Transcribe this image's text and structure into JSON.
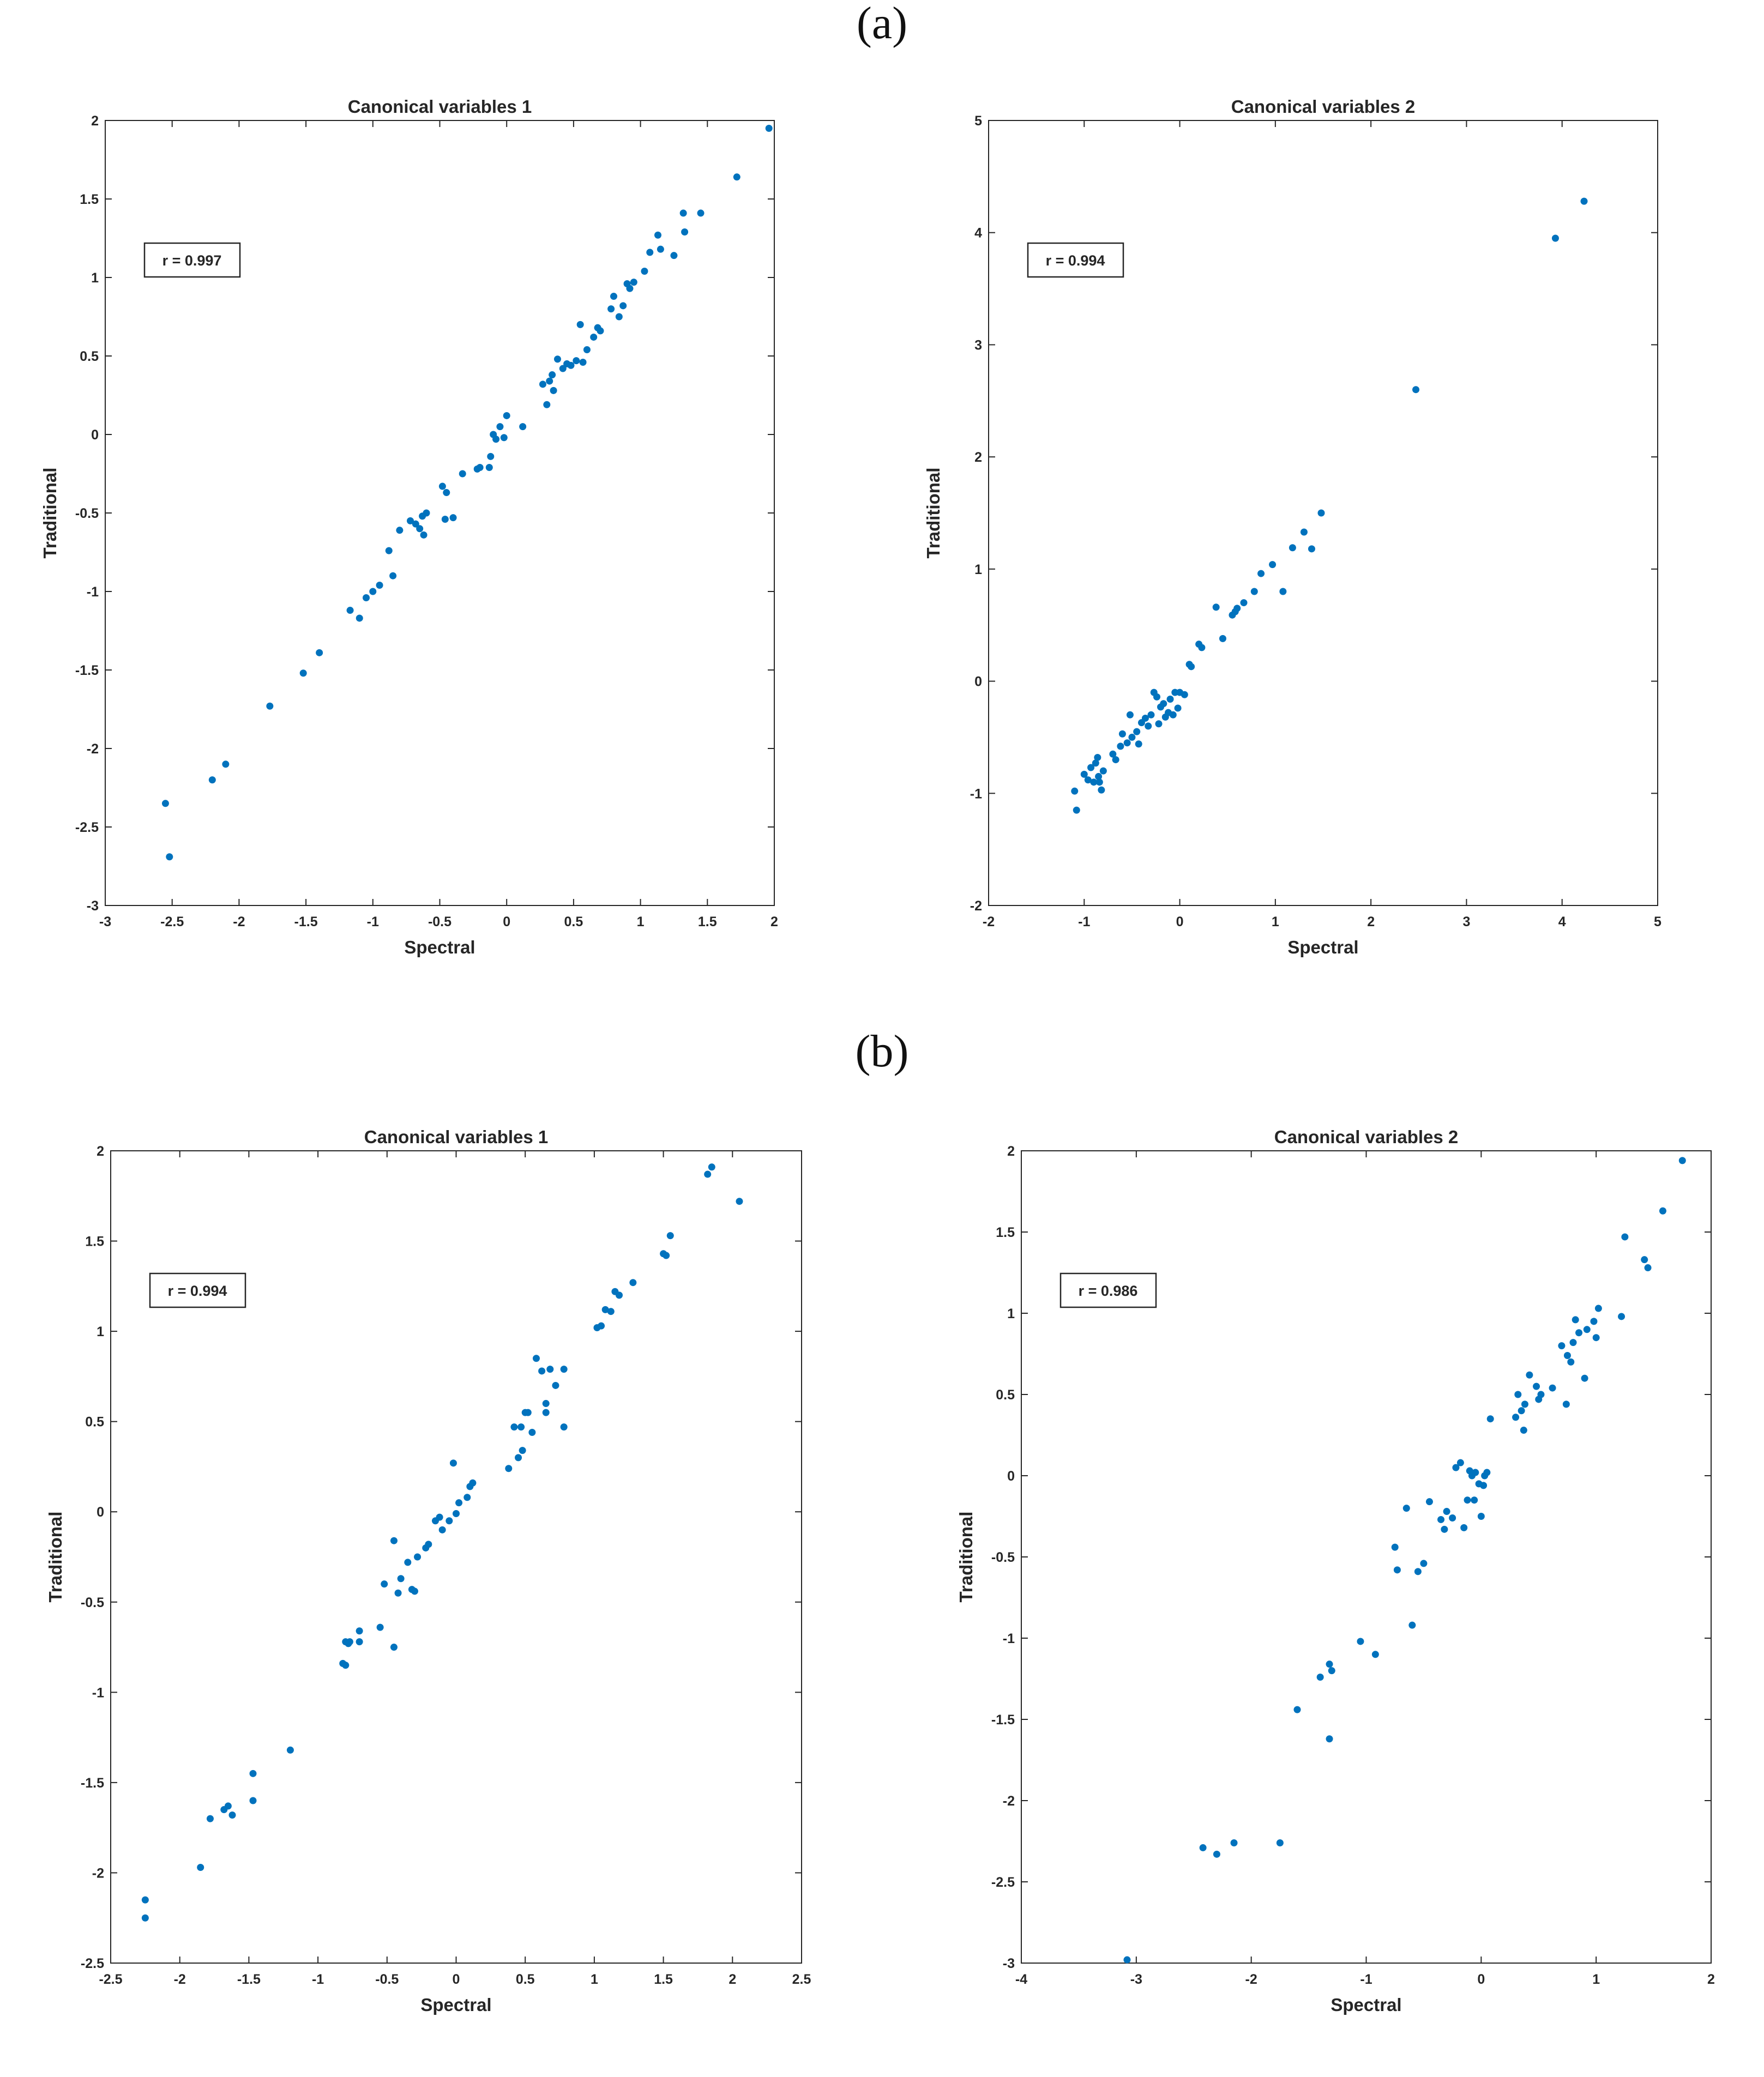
{
  "labels": {
    "a": "(a)",
    "b": "(b)"
  },
  "chart_data": [
    {
      "id": "a1",
      "type": "scatter",
      "title": "Canonical variables 1",
      "xlabel": "Spectral",
      "ylabel": "Traditional",
      "xlim": [
        -3,
        2
      ],
      "ylim": [
        -3,
        2
      ],
      "xticks": [
        -3,
        -2.5,
        -2,
        -1.5,
        -1,
        -0.5,
        0,
        0.5,
        1,
        1.5,
        2
      ],
      "yticks": [
        -3,
        -2.5,
        -2,
        -1.5,
        -1,
        -0.5,
        0,
        0.5,
        1,
        1.5,
        2
      ],
      "annotation": "r = 0.997",
      "marker_color": "#0072BD",
      "points": [
        [
          -2.55,
          -2.35
        ],
        [
          -2.52,
          -2.69
        ],
        [
          -2.2,
          -2.2
        ],
        [
          -2.1,
          -2.1
        ],
        [
          -1.77,
          -1.73
        ],
        [
          -1.52,
          -1.52
        ],
        [
          -1.4,
          -1.39
        ],
        [
          -1.17,
          -1.12
        ],
        [
          -1.1,
          -1.17
        ],
        [
          -1.05,
          -1.04
        ],
        [
          -1.0,
          -1.0
        ],
        [
          -0.95,
          -0.96
        ],
        [
          -0.88,
          -0.74
        ],
        [
          -0.85,
          -0.9
        ],
        [
          -0.8,
          -0.61
        ],
        [
          -0.72,
          -0.55
        ],
        [
          -0.68,
          -0.57
        ],
        [
          -0.65,
          -0.6
        ],
        [
          -0.63,
          -0.52
        ],
        [
          -0.62,
          -0.64
        ],
        [
          -0.6,
          -0.5
        ],
        [
          -0.48,
          -0.33
        ],
        [
          -0.46,
          -0.54
        ],
        [
          -0.45,
          -0.37
        ],
        [
          -0.4,
          -0.53
        ],
        [
          -0.33,
          -0.25
        ],
        [
          -0.22,
          -0.22
        ],
        [
          -0.2,
          -0.21
        ],
        [
          -0.13,
          -0.21
        ],
        [
          -0.12,
          -0.14
        ],
        [
          -0.1,
          0.0
        ],
        [
          -0.08,
          -0.03
        ],
        [
          -0.05,
          0.05
        ],
        [
          -0.02,
          -0.02
        ],
        [
          0.0,
          0.12
        ],
        [
          0.12,
          0.05
        ],
        [
          0.27,
          0.32
        ],
        [
          0.3,
          0.19
        ],
        [
          0.32,
          0.34
        ],
        [
          0.34,
          0.38
        ],
        [
          0.35,
          0.28
        ],
        [
          0.38,
          0.48
        ],
        [
          0.42,
          0.42
        ],
        [
          0.45,
          0.45
        ],
        [
          0.48,
          0.44
        ],
        [
          0.52,
          0.47
        ],
        [
          0.55,
          0.7
        ],
        [
          0.57,
          0.46
        ],
        [
          0.6,
          0.54
        ],
        [
          0.65,
          0.62
        ],
        [
          0.68,
          0.68
        ],
        [
          0.7,
          0.66
        ],
        [
          0.78,
          0.8
        ],
        [
          0.8,
          0.88
        ],
        [
          0.84,
          0.75
        ],
        [
          0.87,
          0.82
        ],
        [
          0.9,
          0.96
        ],
        [
          0.92,
          0.93
        ],
        [
          0.95,
          0.97
        ],
        [
          1.03,
          1.04
        ],
        [
          1.07,
          1.16
        ],
        [
          1.13,
          1.27
        ],
        [
          1.15,
          1.18
        ],
        [
          1.25,
          1.14
        ],
        [
          1.32,
          1.41
        ],
        [
          1.33,
          1.29
        ],
        [
          1.45,
          1.41
        ],
        [
          1.72,
          1.64
        ],
        [
          1.96,
          1.95
        ]
      ]
    },
    {
      "id": "a2",
      "type": "scatter",
      "title": "Canonical variables 2",
      "xlabel": "Spectral",
      "ylabel": "Traditional",
      "xlim": [
        -2,
        5
      ],
      "ylim": [
        -2,
        5
      ],
      "xticks": [
        -2,
        -1,
        0,
        1,
        2,
        3,
        4,
        5
      ],
      "yticks": [
        -2,
        -1,
        0,
        1,
        2,
        3,
        4,
        5
      ],
      "annotation": "r = 0.994",
      "marker_color": "#0072BD",
      "points": [
        [
          -1.1,
          -0.98
        ],
        [
          -1.08,
          -1.15
        ],
        [
          -1.0,
          -0.83
        ],
        [
          -0.96,
          -0.88
        ],
        [
          -0.93,
          -0.77
        ],
        [
          -0.9,
          -0.9
        ],
        [
          -0.88,
          -0.73
        ],
        [
          -0.86,
          -0.68
        ],
        [
          -0.85,
          -0.85
        ],
        [
          -0.84,
          -0.9
        ],
        [
          -0.82,
          -0.97
        ],
        [
          -0.8,
          -0.8
        ],
        [
          -0.7,
          -0.65
        ],
        [
          -0.67,
          -0.7
        ],
        [
          -0.62,
          -0.58
        ],
        [
          -0.6,
          -0.47
        ],
        [
          -0.55,
          -0.55
        ],
        [
          -0.52,
          -0.3
        ],
        [
          -0.5,
          -0.5
        ],
        [
          -0.45,
          -0.45
        ],
        [
          -0.43,
          -0.56
        ],
        [
          -0.4,
          -0.37
        ],
        [
          -0.36,
          -0.33
        ],
        [
          -0.33,
          -0.4
        ],
        [
          -0.3,
          -0.3
        ],
        [
          -0.27,
          -0.1
        ],
        [
          -0.24,
          -0.14
        ],
        [
          -0.22,
          -0.38
        ],
        [
          -0.2,
          -0.23
        ],
        [
          -0.17,
          -0.2
        ],
        [
          -0.15,
          -0.32
        ],
        [
          -0.12,
          -0.28
        ],
        [
          -0.1,
          -0.16
        ],
        [
          -0.07,
          -0.3
        ],
        [
          -0.05,
          -0.1
        ],
        [
          -0.02,
          -0.24
        ],
        [
          0.0,
          -0.1
        ],
        [
          0.05,
          -0.12
        ],
        [
          0.1,
          0.15
        ],
        [
          0.12,
          0.13
        ],
        [
          0.2,
          0.33
        ],
        [
          0.23,
          0.3
        ],
        [
          0.38,
          0.66
        ],
        [
          0.45,
          0.38
        ],
        [
          0.55,
          0.59
        ],
        [
          0.58,
          0.62
        ],
        [
          0.6,
          0.65
        ],
        [
          0.67,
          0.7
        ],
        [
          0.78,
          0.8
        ],
        [
          0.85,
          0.96
        ],
        [
          0.97,
          1.04
        ],
        [
          1.08,
          0.8
        ],
        [
          1.18,
          1.19
        ],
        [
          1.3,
          1.33
        ],
        [
          1.38,
          1.18
        ],
        [
          1.48,
          1.5
        ],
        [
          2.47,
          2.6
        ],
        [
          3.93,
          3.95
        ],
        [
          4.23,
          4.28
        ]
      ]
    },
    {
      "id": "b1",
      "type": "scatter",
      "title": "Canonical variables 1",
      "xlabel": "Spectral",
      "ylabel": "Traditional",
      "xlim": [
        -2.5,
        2.5
      ],
      "ylim": [
        -2.5,
        2
      ],
      "xticks": [
        -2.5,
        -2,
        -1.5,
        -1,
        -0.5,
        0,
        0.5,
        1,
        1.5,
        2,
        2.5
      ],
      "yticks": [
        -2.5,
        -2,
        -1.5,
        -1,
        -0.5,
        0,
        0.5,
        1,
        1.5,
        2
      ],
      "annotation": "r = 0.994",
      "marker_color": "#0072BD",
      "points": [
        [
          -2.25,
          -2.15
        ],
        [
          -2.25,
          -2.25
        ],
        [
          -1.85,
          -1.97
        ],
        [
          -1.78,
          -1.7
        ],
        [
          -1.68,
          -1.65
        ],
        [
          -1.65,
          -1.63
        ],
        [
          -1.62,
          -1.68
        ],
        [
          -1.47,
          -1.45
        ],
        [
          -1.47,
          -1.6
        ],
        [
          -1.2,
          -1.32
        ],
        [
          -0.82,
          -0.84
        ],
        [
          -0.8,
          -0.85
        ],
        [
          -0.8,
          -0.72
        ],
        [
          -0.78,
          -0.73
        ],
        [
          -0.77,
          -0.72
        ],
        [
          -0.7,
          -0.72
        ],
        [
          -0.7,
          -0.66
        ],
        [
          -0.55,
          -0.64
        ],
        [
          -0.52,
          -0.4
        ],
        [
          -0.45,
          -0.16
        ],
        [
          -0.45,
          -0.75
        ],
        [
          -0.42,
          -0.45
        ],
        [
          -0.4,
          -0.37
        ],
        [
          -0.35,
          -0.28
        ],
        [
          -0.32,
          -0.43
        ],
        [
          -0.3,
          -0.44
        ],
        [
          -0.28,
          -0.25
        ],
        [
          -0.22,
          -0.2
        ],
        [
          -0.2,
          -0.18
        ],
        [
          -0.15,
          -0.05
        ],
        [
          -0.12,
          -0.03
        ],
        [
          -0.1,
          -0.1
        ],
        [
          -0.05,
          -0.05
        ],
        [
          -0.02,
          0.27
        ],
        [
          0.0,
          -0.01
        ],
        [
          0.02,
          0.05
        ],
        [
          0.08,
          0.08
        ],
        [
          0.1,
          0.14
        ],
        [
          0.12,
          0.16
        ],
        [
          0.38,
          0.24
        ],
        [
          0.42,
          0.47
        ],
        [
          0.45,
          0.3
        ],
        [
          0.47,
          0.47
        ],
        [
          0.48,
          0.34
        ],
        [
          0.5,
          0.55
        ],
        [
          0.52,
          0.55
        ],
        [
          0.55,
          0.44
        ],
        [
          0.58,
          0.85
        ],
        [
          0.62,
          0.78
        ],
        [
          0.65,
          0.55
        ],
        [
          0.65,
          0.6
        ],
        [
          0.68,
          0.79
        ],
        [
          0.72,
          0.7
        ],
        [
          0.78,
          0.47
        ],
        [
          0.78,
          0.79
        ],
        [
          1.02,
          1.02
        ],
        [
          1.05,
          1.03
        ],
        [
          1.08,
          1.12
        ],
        [
          1.12,
          1.11
        ],
        [
          1.15,
          1.22
        ],
        [
          1.18,
          1.2
        ],
        [
          1.28,
          1.27
        ],
        [
          1.5,
          1.43
        ],
        [
          1.52,
          1.42
        ],
        [
          1.55,
          1.53
        ],
        [
          1.82,
          1.87
        ],
        [
          1.85,
          1.91
        ],
        [
          2.05,
          1.72
        ]
      ]
    },
    {
      "id": "b2",
      "type": "scatter",
      "title": "Canonical variables 2",
      "xlabel": "Spectral",
      "ylabel": "Traditional",
      "xlim": [
        -4,
        2
      ],
      "ylim": [
        -3,
        2
      ],
      "xticks": [
        -4,
        -3,
        -2,
        -1,
        0,
        1,
        2
      ],
      "yticks": [
        -3,
        -2.5,
        -2,
        -1.5,
        -1,
        -0.5,
        0,
        0.5,
        1,
        1.5,
        2
      ],
      "annotation": "r = 0.986",
      "marker_color": "#0072BD",
      "points": [
        [
          -3.08,
          -2.98
        ],
        [
          -2.42,
          -2.29
        ],
        [
          -2.3,
          -2.33
        ],
        [
          -2.15,
          -2.26
        ],
        [
          -1.75,
          -2.26
        ],
        [
          -1.6,
          -1.44
        ],
        [
          -1.4,
          -1.24
        ],
        [
          -1.32,
          -1.16
        ],
        [
          -1.3,
          -1.2
        ],
        [
          -1.32,
          -1.62
        ],
        [
          -1.05,
          -1.02
        ],
        [
          -0.92,
          -1.1
        ],
        [
          -0.75,
          -0.44
        ],
        [
          -0.73,
          -0.58
        ],
        [
          -0.65,
          -0.2
        ],
        [
          -0.6,
          -0.92
        ],
        [
          -0.55,
          -0.59
        ],
        [
          -0.5,
          -0.54
        ],
        [
          -0.45,
          -0.16
        ],
        [
          -0.35,
          -0.27
        ],
        [
          -0.32,
          -0.33
        ],
        [
          -0.3,
          -0.22
        ],
        [
          -0.25,
          -0.26
        ],
        [
          -0.22,
          0.05
        ],
        [
          -0.18,
          0.08
        ],
        [
          -0.15,
          -0.32
        ],
        [
          -0.12,
          -0.15
        ],
        [
          -0.1,
          0.03
        ],
        [
          -0.08,
          0.0
        ],
        [
          -0.06,
          -0.15
        ],
        [
          -0.05,
          0.02
        ],
        [
          -0.02,
          -0.05
        ],
        [
          0.0,
          -0.25
        ],
        [
          0.02,
          -0.06
        ],
        [
          0.03,
          0.0
        ],
        [
          0.05,
          0.02
        ],
        [
          0.08,
          0.35
        ],
        [
          0.3,
          0.36
        ],
        [
          0.32,
          0.5
        ],
        [
          0.35,
          0.4
        ],
        [
          0.37,
          0.28
        ],
        [
          0.38,
          0.44
        ],
        [
          0.42,
          0.62
        ],
        [
          0.48,
          0.55
        ],
        [
          0.5,
          0.47
        ],
        [
          0.52,
          0.5
        ],
        [
          0.62,
          0.54
        ],
        [
          0.7,
          0.8
        ],
        [
          0.74,
          0.44
        ],
        [
          0.75,
          0.74
        ],
        [
          0.78,
          0.7
        ],
        [
          0.8,
          0.82
        ],
        [
          0.82,
          0.96
        ],
        [
          0.85,
          0.88
        ],
        [
          0.9,
          0.6
        ],
        [
          0.92,
          0.9
        ],
        [
          0.98,
          0.95
        ],
        [
          1.0,
          0.85
        ],
        [
          1.02,
          1.03
        ],
        [
          1.25,
          1.47
        ],
        [
          1.22,
          0.98
        ],
        [
          1.42,
          1.33
        ],
        [
          1.45,
          1.28
        ],
        [
          1.58,
          1.63
        ],
        [
          1.75,
          1.94
        ]
      ]
    }
  ]
}
